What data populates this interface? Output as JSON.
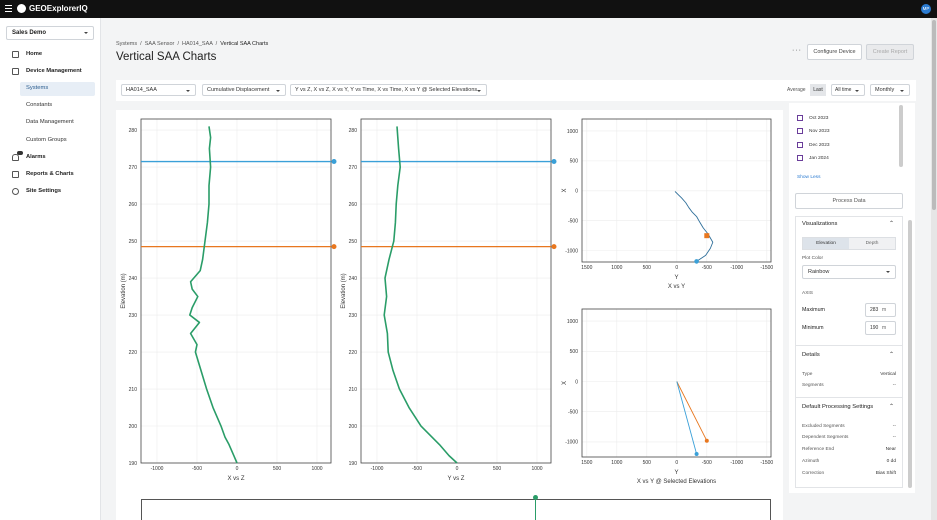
{
  "top_bar": {
    "logo": "GEOExplorerIQ",
    "avatar": "MP"
  },
  "sidebar": {
    "org": "Sales Demo",
    "nav": [
      "Home",
      "Device Management",
      "Systems",
      "Constants",
      "Data Management",
      "Custom Groups",
      "Alarms",
      "Reports & Charts",
      "Site Settings"
    ]
  },
  "breadcrumbs": [
    "Systems",
    "SAA Sensor",
    "HA014_SAA",
    "Vertical SAA Charts"
  ],
  "title": "Vertical SAA Charts",
  "actions": [
    "Configure Device",
    "Create Report"
  ],
  "toolbar": {
    "sensor": "HA014_SAA",
    "metric": "Cumulative Displacement",
    "views": "Y vs Z, X vs Z, X vs Y, Y vs Time, X vs Time, X vs Y @ Selected Elevations",
    "average_label": "Average",
    "average_option": "Last",
    "range": "All time",
    "interval": "Monthly"
  },
  "charts": [
    {
      "type": "line",
      "x_label": "X vs Z",
      "y_label": "Elevation (m)",
      "xlim": [
        -1200,
        1175
      ],
      "ylim": [
        190,
        283
      ],
      "xticks": [
        -1000,
        -500,
        0,
        500,
        1000
      ],
      "yticks": [
        190,
        200,
        210,
        220,
        230,
        240,
        250,
        260,
        270,
        280
      ],
      "grid": true,
      "hlines": [
        {
          "value": 271.5,
          "color": "#3aa0d8"
        },
        {
          "value": 248.5,
          "color": "#e8771f"
        }
      ],
      "series": [
        {
          "color": "#2a9d68",
          "y": [
            281,
            278,
            275,
            270,
            265,
            260,
            255,
            250,
            245,
            242,
            239,
            237,
            235,
            232,
            230,
            228,
            225,
            222,
            220,
            215,
            210,
            205,
            200,
            197,
            195,
            192,
            190
          ],
          "x": [
            -350,
            -330,
            -345,
            -330,
            -350,
            -350,
            -370,
            -400,
            -430,
            -460,
            -580,
            -560,
            -490,
            -560,
            -590,
            -470,
            -580,
            -500,
            -520,
            -450,
            -380,
            -300,
            -200,
            -150,
            -100,
            -40,
            0
          ]
        }
      ]
    },
    {
      "type": "line",
      "x_label": "Y vs Z",
      "y_label": "Elevation (m)",
      "xlim": [
        -1200,
        1175
      ],
      "ylim": [
        190,
        283
      ],
      "xticks": [
        -1000,
        -500,
        0,
        500,
        1000
      ],
      "yticks": [
        190,
        200,
        210,
        220,
        230,
        240,
        250,
        260,
        270,
        280
      ],
      "grid": true,
      "hlines": [
        {
          "value": 271.5,
          "color": "#3aa0d8"
        },
        {
          "value": 248.5,
          "color": "#e8771f"
        }
      ],
      "series": [
        {
          "color": "#2a9d68",
          "y": [
            281,
            275,
            270,
            265,
            260,
            255,
            250,
            245,
            240,
            235,
            230,
            225,
            220,
            215,
            210,
            205,
            200,
            195,
            192,
            190
          ],
          "x": [
            -750,
            -730,
            -710,
            -740,
            -760,
            -770,
            -790,
            -850,
            -900,
            -880,
            -910,
            -870,
            -860,
            -800,
            -720,
            -600,
            -450,
            -220,
            -100,
            0
          ]
        }
      ]
    },
    {
      "type": "line",
      "x_label": "Y",
      "title": "X vs Y",
      "y_label": "X",
      "xlim": [
        1580,
        -1570
      ],
      "ylim": [
        -1190,
        1200
      ],
      "xticks": [
        1500,
        1000,
        500,
        0,
        -500,
        -1000,
        -1500
      ],
      "yticks": [
        1000,
        500,
        0,
        -500,
        -1000
      ],
      "grid": true,
      "series": [
        {
          "color": "#2f6f9a",
          "x": [
            30,
            -20,
            -80,
            -150,
            -200,
            -260,
            -330,
            -380,
            -440,
            -520,
            -600,
            -560,
            -480,
            -330
          ],
          "y": [
            -10,
            -60,
            -120,
            -200,
            -280,
            -360,
            -430,
            -520,
            -620,
            -720,
            -860,
            -960,
            -1080,
            -1180
          ]
        }
      ],
      "points": [
        {
          "x": -500,
          "y": -750,
          "color": "#e8771f",
          "shape": "square"
        },
        {
          "x": -330,
          "y": -1180,
          "color": "#3aa0d8",
          "shape": "circle"
        }
      ]
    },
    {
      "type": "line",
      "x_label": "Y",
      "title": "X vs Y @ Selected Elevations",
      "y_label": "X",
      "xlim": [
        1580,
        -1570
      ],
      "ylim": [
        -1250,
        1200
      ],
      "xticks": [
        1500,
        1000,
        500,
        0,
        -500,
        -1000,
        -1500
      ],
      "yticks": [
        1000,
        500,
        0,
        -500,
        -1000
      ],
      "grid": true,
      "series": [
        {
          "color": "#e8771f",
          "x": [
            0,
            -500
          ],
          "y": [
            0,
            -980
          ],
          "marker": "circle"
        },
        {
          "color": "#3aa0d8",
          "x": [
            0,
            -330
          ],
          "y": [
            0,
            -1200
          ],
          "marker": "circle"
        }
      ]
    }
  ],
  "side_panel": {
    "dates": [
      "Oct 2023",
      "Nov 2023",
      "Dec 2023",
      "Jan 2024"
    ],
    "show_less": "Show Less",
    "process": "Process Data",
    "visualizations": {
      "title": "Visualizations",
      "tabs": [
        "Elevation",
        "Depth"
      ],
      "plot_color_label": "Plot Color",
      "plot_color": "Rainbow",
      "axis_label": "AXIS",
      "maximum_label": "Maximum",
      "maximum": 283,
      "minimum_label": "Minimum",
      "minimum": 190,
      "unit": "m"
    },
    "details": {
      "title": "Details",
      "rows": [
        [
          "Type",
          "Vertical"
        ],
        [
          "Segments",
          "--"
        ]
      ]
    },
    "processing": {
      "title": "Default Processing Settings",
      "rows": [
        [
          "Excluded Segments",
          "--"
        ],
        [
          "Dependent Segments",
          "--"
        ],
        [
          "Reference End",
          "Near"
        ],
        [
          "Azimuth",
          "0 dd"
        ],
        [
          "Correction",
          "Bias Shift"
        ]
      ]
    }
  }
}
